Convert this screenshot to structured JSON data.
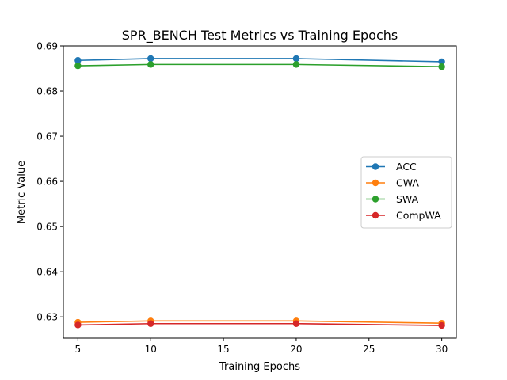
{
  "chart_data": {
    "type": "line",
    "title": "SPR_BENCH Test Metrics vs Training Epochs",
    "xlabel": "Training Epochs",
    "ylabel": "Metric Value",
    "xlim": [
      4,
      31
    ],
    "ylim": [
      0.6253,
      0.69
    ],
    "xticks": [
      5,
      10,
      15,
      20,
      25,
      30
    ],
    "yticks": [
      0.63,
      0.64,
      0.65,
      0.66,
      0.67,
      0.68,
      0.69
    ],
    "x": [
      5,
      10,
      20,
      30
    ],
    "series": [
      {
        "name": "ACC",
        "color": "#1f77b4",
        "values": [
          0.6868,
          0.6872,
          0.6872,
          0.6865
        ]
      },
      {
        "name": "CWA",
        "color": "#ff7f0e",
        "values": [
          0.6288,
          0.6291,
          0.6291,
          0.6286
        ]
      },
      {
        "name": "SWA",
        "color": "#2ca02c",
        "values": [
          0.6856,
          0.6859,
          0.6859,
          0.6854
        ]
      },
      {
        "name": "CompWA",
        "color": "#d62728",
        "values": [
          0.6282,
          0.6285,
          0.6285,
          0.6281
        ]
      }
    ],
    "grid": false,
    "legend_position": "center-right"
  }
}
